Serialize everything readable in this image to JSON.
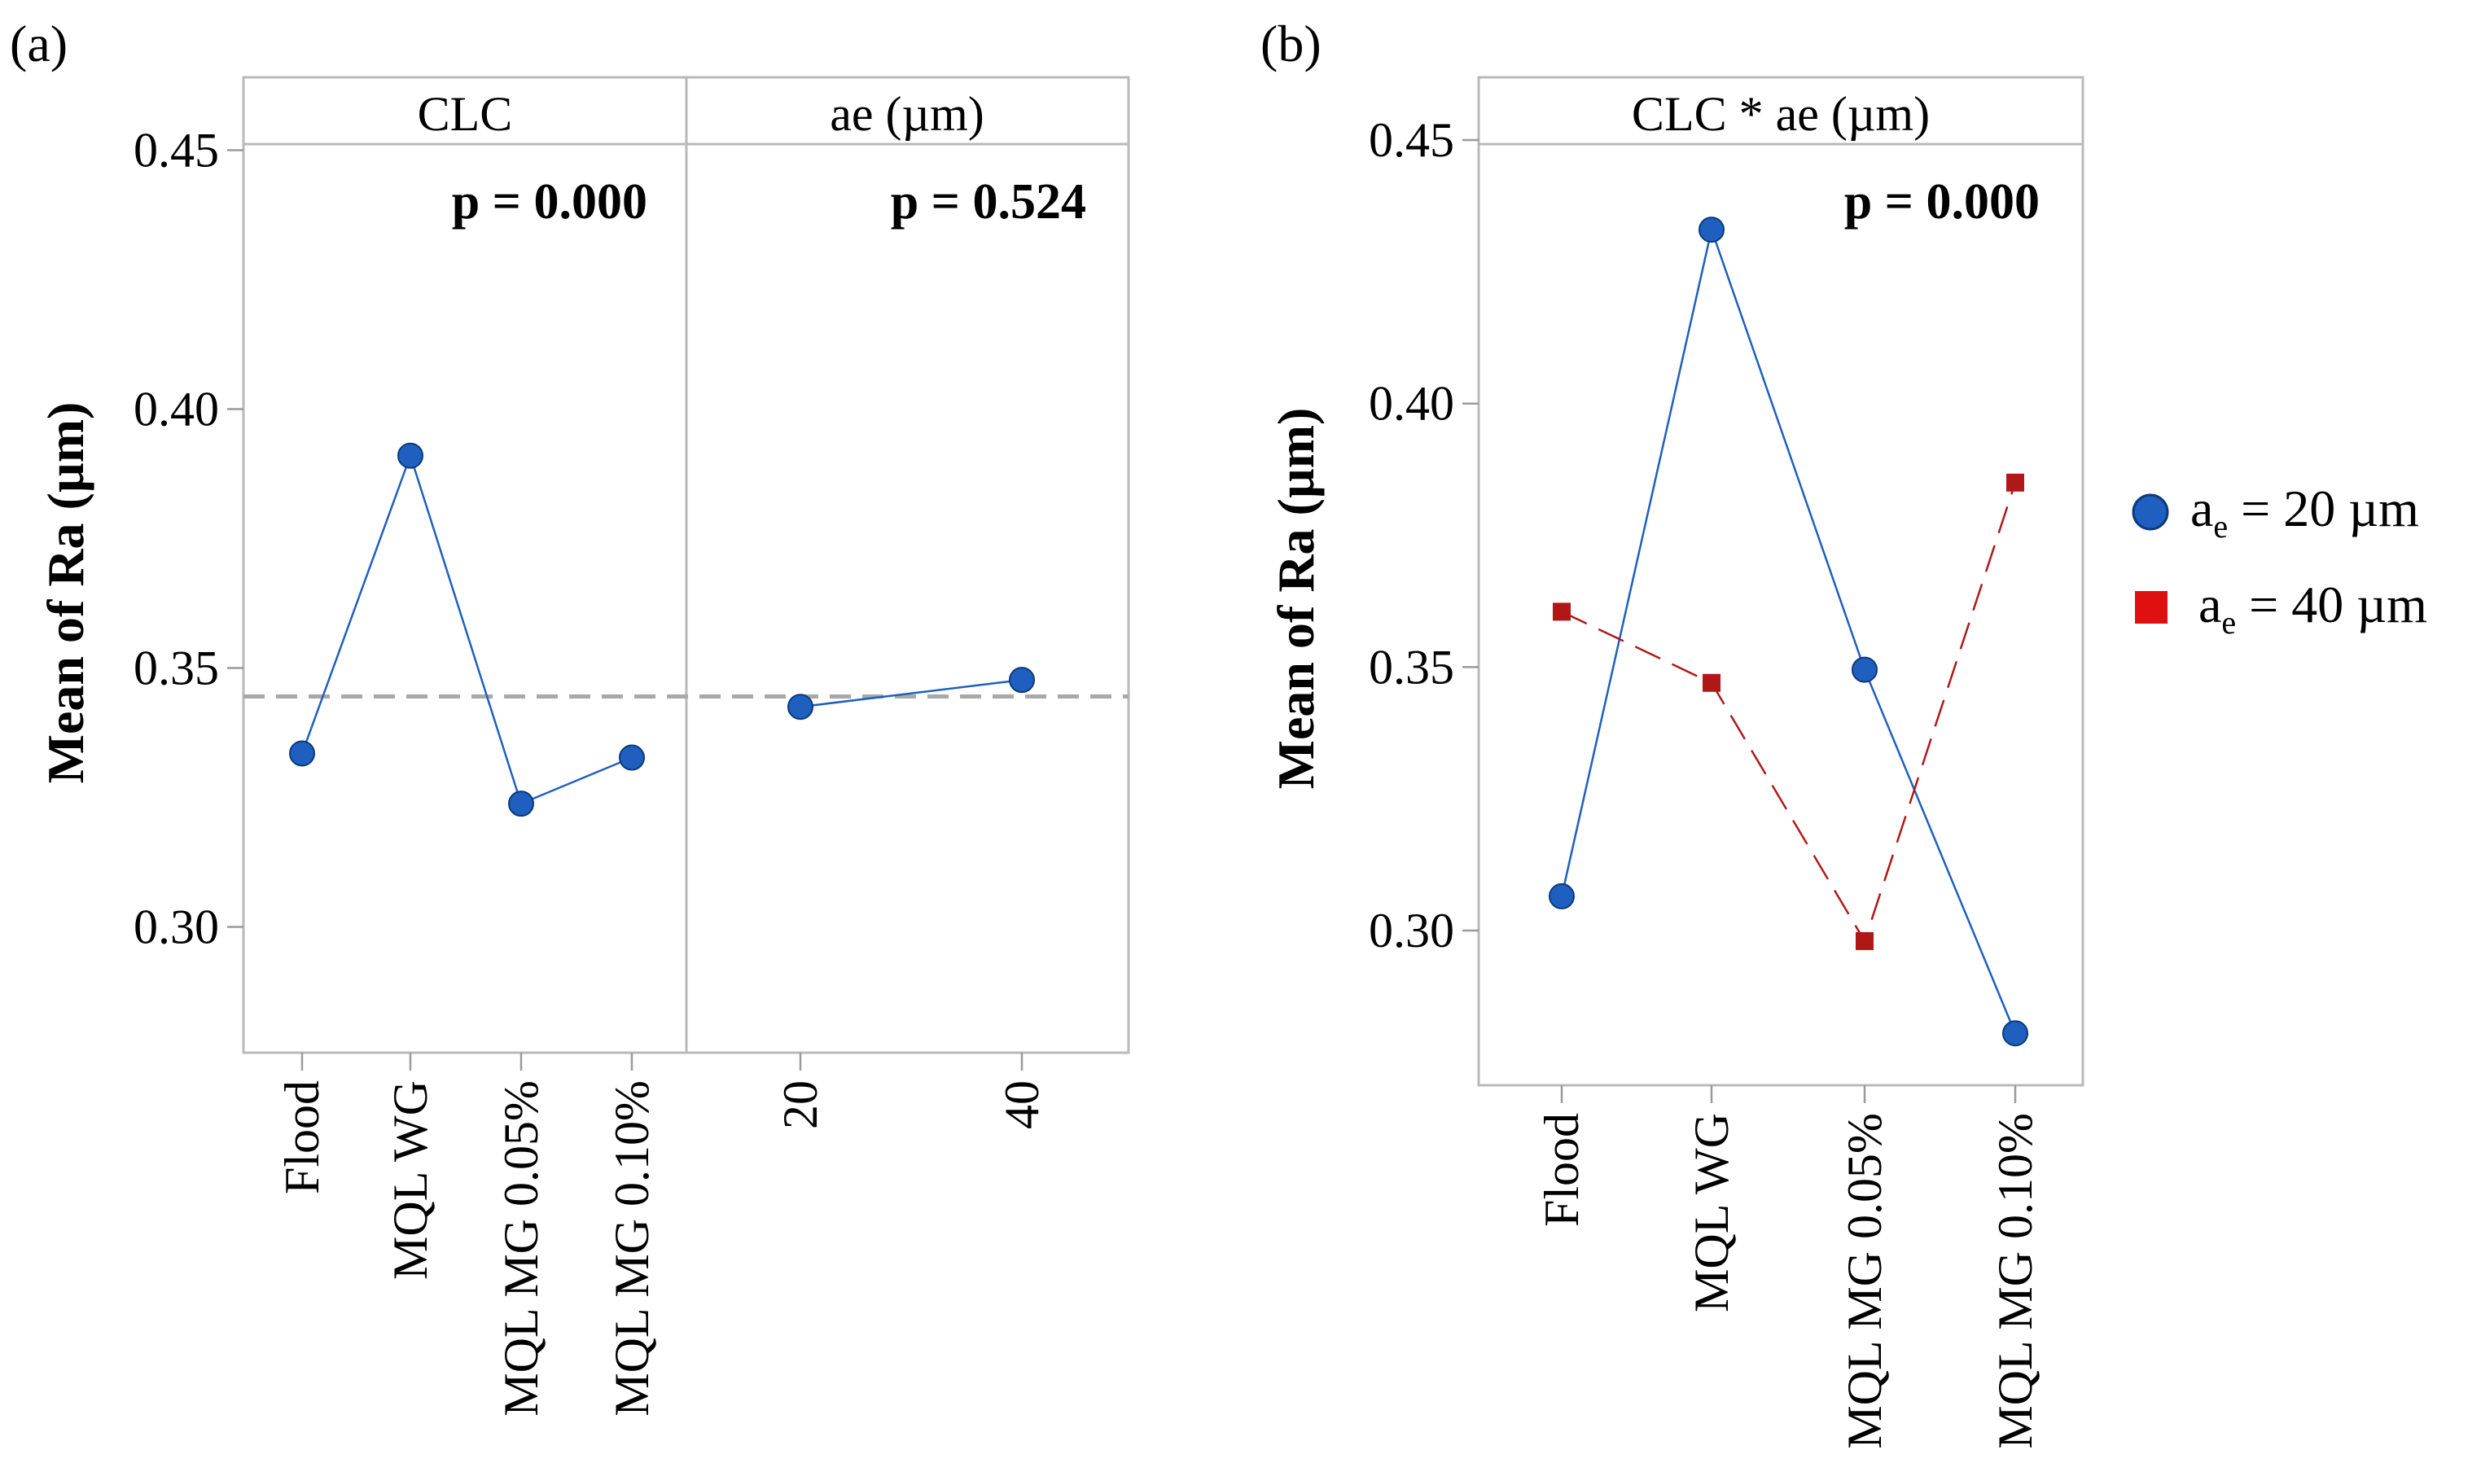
{
  "chart_data": [
    {
      "type": "line",
      "panel_label": "(a)",
      "ylabel": "Mean of Ra (µm)",
      "ylim": [
        0.27,
        0.46
      ],
      "yticks": [
        0.3,
        0.35,
        0.4,
        0.45
      ],
      "ytick_labels": [
        "0.30",
        "0.35",
        "0.40",
        "0.45"
      ],
      "reference_mean": 0.3445,
      "grid": false,
      "facets": [
        {
          "header": "CLC",
          "p_value": "p = 0.000",
          "categories": [
            "Flood",
            "MQL WG",
            "MQL MG 0.05%",
            "MQL MG 0.10%"
          ],
          "values": [
            0.3335,
            0.391,
            0.3238,
            0.3327
          ],
          "color": "#1f5fbf"
        },
        {
          "header": "ae (µm)",
          "p_value": "p = 0.524",
          "categories": [
            "20",
            "40"
          ],
          "values": [
            0.3425,
            0.3477
          ],
          "color": "#1f5fbf"
        }
      ]
    },
    {
      "type": "line",
      "panel_label": "(b)",
      "header": "CLC * ae (µm)",
      "p_value": "p = 0.000",
      "ylabel": "Mean of Ra (µm)",
      "ylim": [
        0.27,
        0.46
      ],
      "yticks": [
        0.3,
        0.35,
        0.4,
        0.45
      ],
      "ytick_labels": [
        "0.30",
        "0.35",
        "0.40",
        "0.45"
      ],
      "grid": false,
      "categories": [
        "Flood",
        "MQL WG",
        "MQL MG 0.05%",
        "MQL MG 0.10%"
      ],
      "series": [
        {
          "name": "a_e = 20 µm",
          "legend_base": "a",
          "legend_sub": "e",
          "legend_rest": " = 20 µm",
          "values": [
            0.3065,
            0.433,
            0.3495,
            0.2805
          ],
          "color": "#1f5fbf",
          "marker": "circle",
          "line_style": "solid"
        },
        {
          "name": "a_e = 40 µm",
          "legend_base": "a",
          "legend_sub": "e",
          "legend_rest": " = 40 µm",
          "values": [
            0.3605,
            0.347,
            0.298,
            0.385
          ],
          "color": "#b01818",
          "marker": "square",
          "line_style": "dashed"
        }
      ],
      "legend_position": "right"
    }
  ]
}
